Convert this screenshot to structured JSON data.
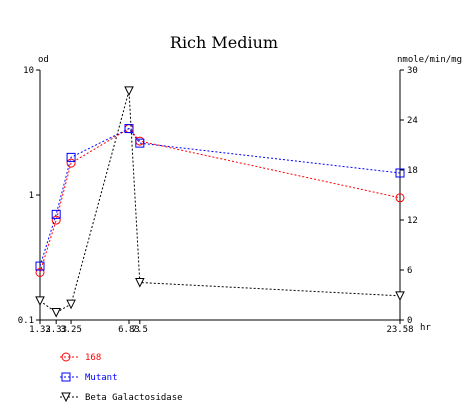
{
  "chart_data": {
    "type": "line",
    "title": "Rich Medium",
    "y_left_label": "od",
    "y_right_label": "nmole/min/mg",
    "x_unit_label": "hr",
    "x_range": [
      1.33,
      23.58
    ],
    "y_left_range": [
      0.1,
      10
    ],
    "y_left_scale": "log",
    "y_right_range": [
      0,
      30
    ],
    "y_right_scale": "linear",
    "x_tick_labels": [
      "1.33",
      "2.33",
      "3.25",
      "6.83",
      "7.5",
      "23.58"
    ],
    "x_ticks": [
      1.33,
      2.33,
      3.25,
      6.83,
      7.5,
      23.58
    ],
    "y_left_tick_labels": [
      "0.1",
      "1",
      "10"
    ],
    "y_left_ticks": [
      0.1,
      1,
      10
    ],
    "y_right_tick_labels": [
      "0",
      "6",
      "12",
      "18",
      "24",
      "30"
    ],
    "y_right_ticks": [
      0,
      6,
      12,
      18,
      24,
      30
    ],
    "grid": false,
    "legend_position": "bottom-left",
    "series": [
      {
        "name": "168",
        "axis": "left",
        "color": "#ff0000",
        "marker": "circle",
        "x": [
          1.33,
          2.33,
          3.25,
          6.83,
          7.5,
          23.58
        ],
        "y": [
          0.24,
          0.63,
          1.8,
          3.4,
          2.7,
          0.95
        ]
      },
      {
        "name": "Mutant",
        "axis": "left",
        "color": "#0000ff",
        "marker": "square",
        "x": [
          1.33,
          2.33,
          3.25,
          6.83,
          7.5,
          23.58
        ],
        "y": [
          0.27,
          0.7,
          2.0,
          3.4,
          2.6,
          1.5
        ]
      },
      {
        "name": "Beta Galactosidase",
        "axis": "right",
        "color": "#000000",
        "marker": "triangle-down",
        "x": [
          1.33,
          2.33,
          3.25,
          6.83,
          7.5,
          23.58
        ],
        "y": [
          2.3,
          0.9,
          1.9,
          27.5,
          4.5,
          2.9
        ]
      }
    ]
  }
}
